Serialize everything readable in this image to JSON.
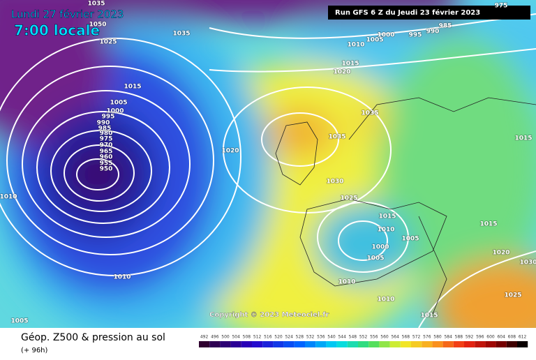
{
  "header": {
    "date": "Lundi 27 février 2023",
    "time": "7:00 locale",
    "run": "Run GFS 6 Z du Jeudi 23 février 2023"
  },
  "copyright": "Copyright © 2023 Meteociel.fr",
  "footer": {
    "title": "Géop. Z500 & pression au sol",
    "lead": "(+ 96h)"
  },
  "isobar_labels": [
    1035,
    1050,
    1025,
    1035,
    1015,
    1005,
    1000,
    995,
    990,
    985,
    980,
    975,
    970,
    965,
    960,
    955,
    950,
    1010,
    1020,
    1010,
    1005,
    1000,
    995,
    990,
    985,
    975,
    1015,
    1020,
    1035,
    1035,
    1030,
    1025,
    1015,
    1010,
    1005,
    1000,
    1005,
    1010,
    1010,
    1015,
    1015,
    1020,
    1025,
    1015,
    1010,
    1005,
    1030
  ],
  "legend": {
    "values": [
      492,
      496,
      500,
      504,
      508,
      512,
      516,
      520,
      524,
      528,
      532,
      536,
      540,
      544,
      548,
      552,
      556,
      560,
      564,
      568,
      572,
      576,
      580,
      584,
      588,
      592,
      596,
      600,
      604,
      608,
      612
    ]
  }
}
